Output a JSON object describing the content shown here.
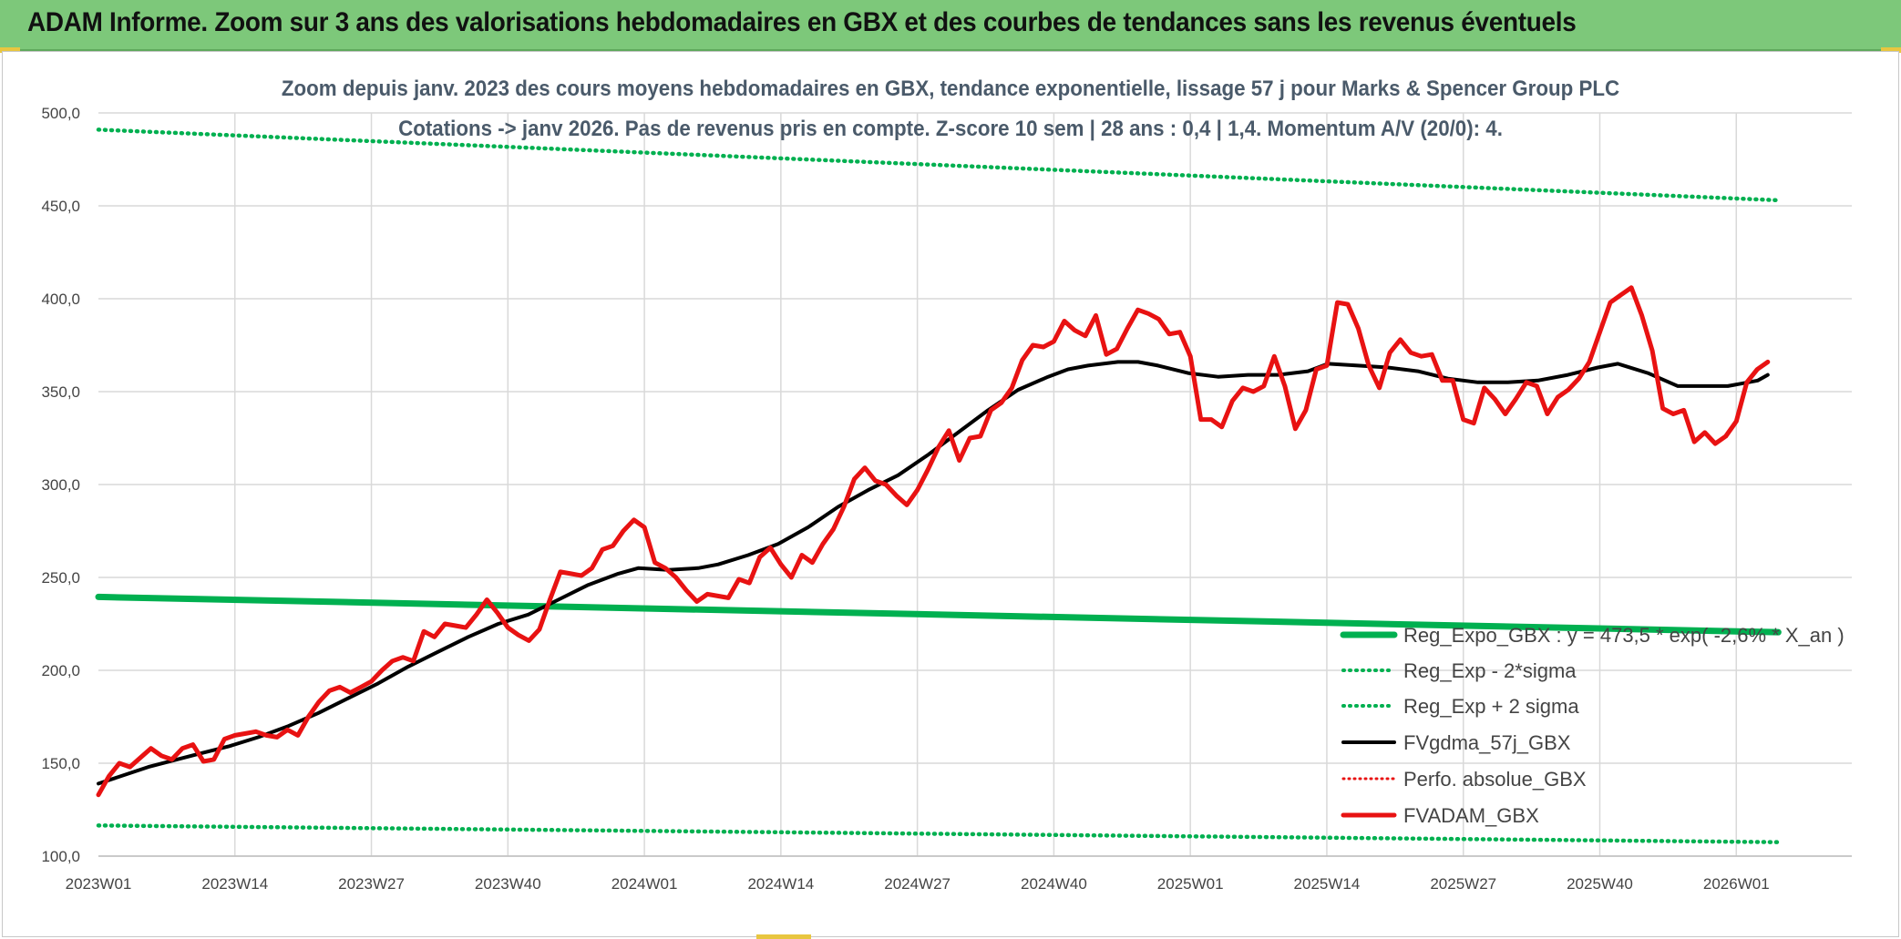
{
  "banner": {
    "title": "ADAM Informe. Zoom sur 3 ans des valorisations hebdomadaires en GBX et des courbes de tendances sans les revenus éventuels"
  },
  "colors": {
    "banner": "#7dc87a",
    "green": "#00b050",
    "red": "#e81212",
    "black": "#000000",
    "grid": "#d9d9d9"
  },
  "chart_data": {
    "type": "line",
    "title": "Zoom depuis janv. 2023 des cours moyens hebdomadaires en GBX, tendance exponentielle, lissage 57 j pour Marks & Spencer Group PLC",
    "subtitle": "Cotations -> janv 2026. Pas de revenus pris en compte. Z-score 10 sem | 28 ans : 0,4 | 1,4. Momentum A/V (20/0): 4.",
    "xlabel": "",
    "ylabel": "",
    "ylim": [
      100,
      500
    ],
    "yticks": [
      "100,0",
      "150,0",
      "200,0",
      "250,0",
      "300,0",
      "350,0",
      "400,0",
      "450,0",
      "500,0"
    ],
    "xtick_labels": [
      "2023W01",
      "2023W14",
      "2023W27",
      "2023W40",
      "2024W01",
      "2024W14",
      "2024W27",
      "2024W40",
      "2025W01",
      "2025W14",
      "2025W27",
      "2025W40",
      "2026W01"
    ],
    "weeks": 161,
    "legend_position": "bottom-right",
    "series": [
      {
        "name": "Reg_Expo_GBX : y = 473,5 * exp( -2,6% * X_an )",
        "style": "solid-thick",
        "color": "#00b050",
        "start": 239.5,
        "end": 220.5
      },
      {
        "name": "Reg_Exp - 2*sigma",
        "style": "dotted",
        "color": "#00b050",
        "start": 116.5,
        "end": 107.5
      },
      {
        "name": "Reg_Exp + 2 sigma",
        "style": "dotted",
        "color": "#00b050",
        "start": 491,
        "end": 453
      },
      {
        "name": "FVgdma_57j_GBX",
        "style": "solid",
        "color": "#000000",
        "points": [
          [
            0,
            139
          ],
          [
            5,
            148
          ],
          [
            10,
            155
          ],
          [
            13,
            159
          ],
          [
            16,
            164
          ],
          [
            19,
            170
          ],
          [
            22,
            177
          ],
          [
            25,
            185
          ],
          [
            28,
            193
          ],
          [
            31,
            202
          ],
          [
            34,
            210
          ],
          [
            37,
            218
          ],
          [
            40,
            225
          ],
          [
            43,
            230
          ],
          [
            46,
            238
          ],
          [
            49,
            246
          ],
          [
            52,
            252
          ],
          [
            54,
            255
          ],
          [
            57,
            254
          ],
          [
            60,
            255
          ],
          [
            62,
            257
          ],
          [
            65,
            262
          ],
          [
            68,
            268
          ],
          [
            71,
            277
          ],
          [
            74,
            288
          ],
          [
            77,
            297
          ],
          [
            80,
            305
          ],
          [
            83,
            316
          ],
          [
            86,
            328
          ],
          [
            89,
            340
          ],
          [
            92,
            351
          ],
          [
            95,
            358
          ],
          [
            97,
            362
          ],
          [
            99,
            364
          ],
          [
            102,
            366
          ],
          [
            104,
            366
          ],
          [
            106,
            364
          ],
          [
            109,
            360
          ],
          [
            112,
            358
          ],
          [
            115,
            359
          ],
          [
            118,
            359
          ],
          [
            121,
            361
          ],
          [
            123,
            365
          ],
          [
            126,
            364
          ],
          [
            129,
            363
          ],
          [
            132,
            361
          ],
          [
            135,
            357
          ],
          [
            138,
            355
          ],
          [
            141,
            355
          ],
          [
            144,
            356
          ],
          [
            147,
            359
          ],
          [
            150,
            363
          ],
          [
            152,
            365
          ],
          [
            155,
            360
          ],
          [
            158,
            353
          ],
          [
            160,
            353
          ],
          [
            163,
            353
          ],
          [
            166,
            356
          ],
          [
            167,
            359
          ]
        ]
      },
      {
        "name": "Perfo. absolue_GBX",
        "style": "dotted",
        "color": "#e81212",
        "values": []
      },
      {
        "name": "FVADAM_GBX",
        "style": "solid-thick",
        "color": "#e81212",
        "points": [
          [
            0,
            133
          ],
          [
            1,
            143
          ],
          [
            2,
            150
          ],
          [
            3,
            148
          ],
          [
            4,
            153
          ],
          [
            5,
            158
          ],
          [
            6,
            154
          ],
          [
            7,
            152
          ],
          [
            8,
            158
          ],
          [
            9,
            160
          ],
          [
            10,
            151
          ],
          [
            11,
            152
          ],
          [
            12,
            163
          ],
          [
            13,
            165
          ],
          [
            14,
            166
          ],
          [
            15,
            167
          ],
          [
            16,
            165
          ],
          [
            17,
            164
          ],
          [
            18,
            168
          ],
          [
            19,
            165
          ],
          [
            20,
            175
          ],
          [
            21,
            183
          ],
          [
            22,
            189
          ],
          [
            23,
            191
          ],
          [
            24,
            188
          ],
          [
            25,
            191
          ],
          [
            26,
            194
          ],
          [
            27,
            200
          ],
          [
            28,
            205
          ],
          [
            29,
            207
          ],
          [
            30,
            205
          ],
          [
            31,
            221
          ],
          [
            32,
            218
          ],
          [
            33,
            225
          ],
          [
            34,
            224
          ],
          [
            35,
            223
          ],
          [
            36,
            230
          ],
          [
            37,
            238
          ],
          [
            38,
            231
          ],
          [
            39,
            223
          ],
          [
            40,
            219
          ],
          [
            41,
            216
          ],
          [
            42,
            222
          ],
          [
            43,
            238
          ],
          [
            44,
            253
          ],
          [
            45,
            252
          ],
          [
            46,
            251
          ],
          [
            47,
            255
          ],
          [
            48,
            265
          ],
          [
            49,
            267
          ],
          [
            50,
            275
          ],
          [
            51,
            281
          ],
          [
            52,
            277
          ],
          [
            53,
            258
          ],
          [
            54,
            255
          ],
          [
            55,
            250
          ],
          [
            56,
            243
          ],
          [
            57,
            237
          ],
          [
            58,
            241
          ],
          [
            59,
            240
          ],
          [
            60,
            239
          ],
          [
            61,
            249
          ],
          [
            62,
            247
          ],
          [
            63,
            261
          ],
          [
            64,
            266
          ],
          [
            65,
            257
          ],
          [
            66,
            250
          ],
          [
            67,
            262
          ],
          [
            68,
            258
          ],
          [
            69,
            268
          ],
          [
            70,
            276
          ],
          [
            71,
            288
          ],
          [
            72,
            303
          ],
          [
            73,
            309
          ],
          [
            74,
            302
          ],
          [
            75,
            300
          ],
          [
            76,
            294
          ],
          [
            77,
            289
          ],
          [
            78,
            297
          ],
          [
            79,
            308
          ],
          [
            80,
            320
          ],
          [
            81,
            329
          ],
          [
            82,
            313
          ],
          [
            83,
            325
          ],
          [
            84,
            326
          ],
          [
            85,
            340
          ],
          [
            86,
            344
          ],
          [
            87,
            352
          ],
          [
            88,
            367
          ],
          [
            89,
            375
          ],
          [
            90,
            374
          ],
          [
            91,
            377
          ],
          [
            92,
            388
          ],
          [
            93,
            383
          ],
          [
            94,
            380
          ],
          [
            95,
            391
          ],
          [
            96,
            370
          ],
          [
            97,
            373
          ],
          [
            98,
            384
          ],
          [
            99,
            394
          ],
          [
            100,
            392
          ],
          [
            101,
            389
          ],
          [
            102,
            381
          ],
          [
            103,
            382
          ],
          [
            104,
            369
          ],
          [
            105,
            335
          ],
          [
            106,
            335
          ],
          [
            107,
            331
          ],
          [
            108,
            345
          ],
          [
            109,
            352
          ],
          [
            110,
            350
          ],
          [
            111,
            353
          ],
          [
            112,
            369
          ],
          [
            113,
            353
          ],
          [
            114,
            330
          ],
          [
            115,
            340
          ],
          [
            116,
            362
          ],
          [
            117,
            364
          ],
          [
            118,
            398
          ],
          [
            119,
            397
          ],
          [
            120,
            384
          ],
          [
            121,
            364
          ],
          [
            122,
            352
          ],
          [
            123,
            371
          ],
          [
            124,
            378
          ],
          [
            125,
            371
          ],
          [
            126,
            369
          ],
          [
            127,
            370
          ],
          [
            128,
            356
          ],
          [
            129,
            356
          ],
          [
            130,
            335
          ],
          [
            131,
            333
          ],
          [
            132,
            352
          ],
          [
            133,
            346
          ],
          [
            134,
            338
          ],
          [
            135,
            346
          ],
          [
            136,
            355
          ],
          [
            137,
            353
          ],
          [
            138,
            338
          ],
          [
            139,
            347
          ],
          [
            140,
            351
          ],
          [
            141,
            357
          ],
          [
            142,
            366
          ],
          [
            143,
            382
          ],
          [
            144,
            398
          ],
          [
            145,
            402
          ],
          [
            146,
            406
          ],
          [
            147,
            391
          ],
          [
            148,
            372
          ],
          [
            149,
            341
          ],
          [
            150,
            338
          ],
          [
            151,
            340
          ],
          [
            152,
            323
          ],
          [
            153,
            328
          ],
          [
            154,
            322
          ],
          [
            155,
            326
          ],
          [
            156,
            334
          ],
          [
            157,
            355
          ],
          [
            158,
            362
          ],
          [
            159,
            366
          ]
        ]
      }
    ]
  }
}
